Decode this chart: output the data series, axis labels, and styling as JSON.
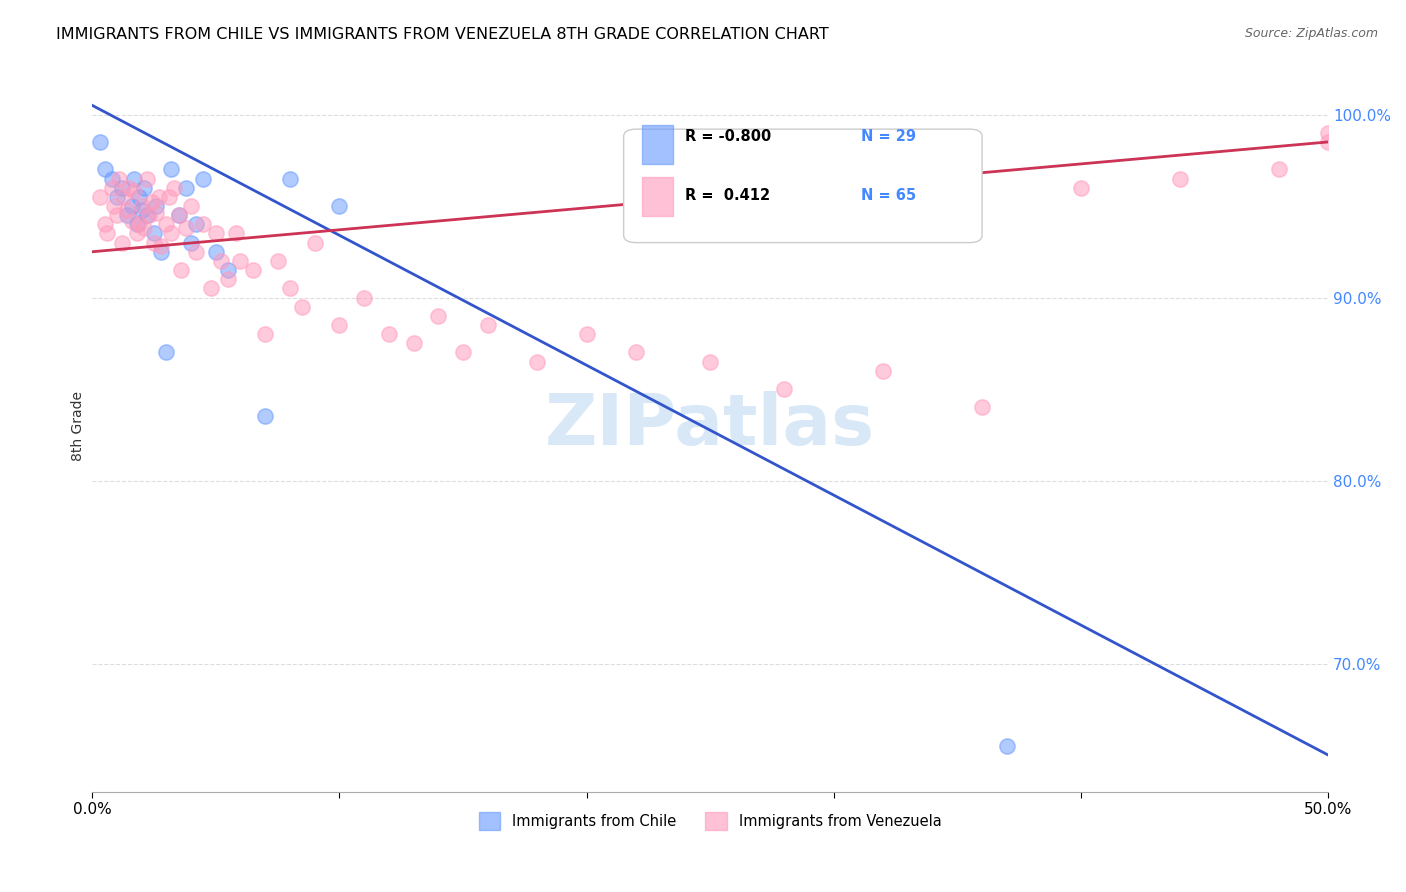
{
  "title": "IMMIGRANTS FROM CHILE VS IMMIGRANTS FROM VENEZUELA 8TH GRADE CORRELATION CHART",
  "source": "Source: ZipAtlas.com",
  "ylabel": "8th Grade",
  "yticks": [
    100.0,
    90.0,
    80.0,
    70.0
  ],
  "ytick_labels": [
    "100.0%",
    "90.0%",
    "80.0%",
    "70.0%"
  ],
  "xmin": 0.0,
  "xmax": 50.0,
  "ymin": 63.0,
  "ymax": 103.0,
  "legend_chile_R": "-0.800",
  "legend_chile_N": "29",
  "legend_venezuela_R": "0.412",
  "legend_venezuela_N": "65",
  "chile_color": "#6699ff",
  "venezuela_color": "#ff99bb",
  "trend_chile_color": "#3355cc",
  "trend_venezuela_color": "#cc3355",
  "watermark": "ZIPatlas",
  "chile_scatter_x": [
    0.3,
    0.5,
    0.8,
    1.0,
    1.2,
    1.4,
    1.6,
    1.7,
    1.8,
    1.9,
    2.0,
    2.1,
    2.2,
    2.5,
    2.6,
    2.8,
    3.0,
    3.2,
    3.5,
    3.8,
    4.0,
    4.2,
    4.5,
    5.0,
    5.5,
    7.0,
    8.0,
    10.0,
    37.0
  ],
  "chile_scatter_y": [
    98.5,
    97.0,
    96.5,
    95.5,
    96.0,
    94.5,
    95.0,
    96.5,
    94.0,
    95.5,
    94.8,
    96.0,
    94.5,
    93.5,
    95.0,
    92.5,
    87.0,
    97.0,
    94.5,
    96.0,
    93.0,
    94.0,
    96.5,
    92.5,
    91.5,
    83.5,
    96.5,
    95.0,
    65.5
  ],
  "venezuela_scatter_x": [
    0.3,
    0.5,
    0.6,
    0.8,
    0.9,
    1.0,
    1.1,
    1.2,
    1.3,
    1.4,
    1.5,
    1.6,
    1.7,
    1.8,
    1.9,
    2.0,
    2.1,
    2.2,
    2.3,
    2.4,
    2.5,
    2.6,
    2.7,
    2.8,
    3.0,
    3.1,
    3.2,
    3.3,
    3.5,
    3.6,
    3.8,
    4.0,
    4.2,
    4.5,
    4.8,
    5.0,
    5.2,
    5.5,
    5.8,
    6.0,
    6.5,
    7.0,
    7.5,
    8.0,
    8.5,
    9.0,
    10.0,
    11.0,
    12.0,
    13.0,
    14.0,
    15.0,
    16.0,
    18.0,
    20.0,
    22.0,
    25.0,
    28.0,
    32.0,
    36.0,
    40.0,
    44.0,
    48.0,
    50.0,
    50.0
  ],
  "venezuela_scatter_y": [
    95.5,
    94.0,
    93.5,
    96.0,
    95.0,
    94.5,
    96.5,
    93.0,
    95.5,
    94.8,
    96.0,
    94.2,
    95.8,
    93.5,
    94.0,
    95.0,
    93.8,
    96.5,
    94.5,
    95.2,
    93.0,
    94.6,
    95.5,
    92.8,
    94.0,
    95.5,
    93.5,
    96.0,
    94.5,
    91.5,
    93.8,
    95.0,
    92.5,
    94.0,
    90.5,
    93.5,
    92.0,
    91.0,
    93.5,
    92.0,
    91.5,
    88.0,
    92.0,
    90.5,
    89.5,
    93.0,
    88.5,
    90.0,
    88.0,
    87.5,
    89.0,
    87.0,
    88.5,
    86.5,
    88.0,
    87.0,
    86.5,
    85.0,
    86.0,
    84.0,
    96.0,
    96.5,
    97.0,
    98.5,
    99.0
  ],
  "chile_trend_x": [
    0.0,
    50.0
  ],
  "chile_trend_y": [
    100.5,
    65.0
  ],
  "venezuela_trend_x": [
    0.0,
    50.0
  ],
  "venezuela_trend_y": [
    92.5,
    98.5
  ],
  "grid_color": "#dddddd",
  "background_color": "#ffffff",
  "scatter_size": 120,
  "scatter_alpha": 0.5,
  "scatter_linewidth": 1.2
}
